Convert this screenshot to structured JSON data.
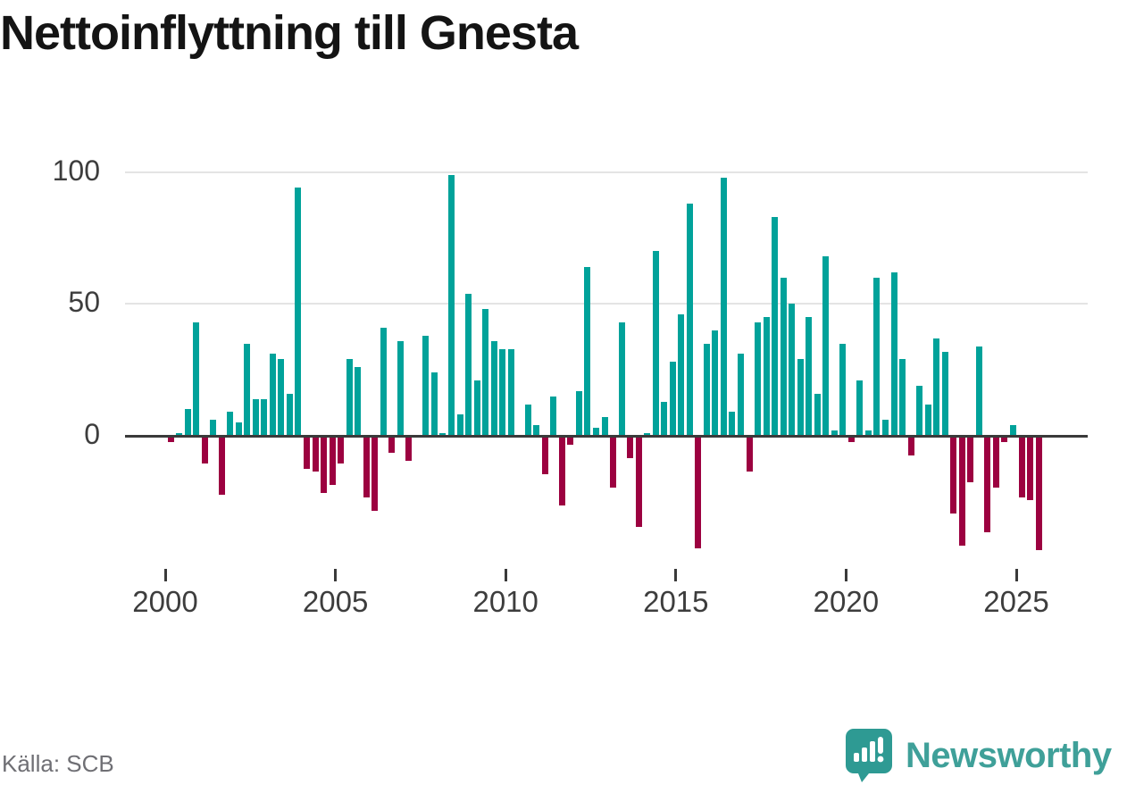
{
  "title": "Nettoinflyttning till Gnesta",
  "source_caption": "Källa: SCB",
  "logo": {
    "text": "Newsworthy",
    "icon": "newsworthy-speech-bubble-chart-icon"
  },
  "colors": {
    "positive": "#00a29a",
    "negative": "#9c0140",
    "zero_axis": "#3a3a3a",
    "gridline": "#e4e4e4",
    "axis_label": "#3d3d3d",
    "title_text": "#141414",
    "source_text": "#6f6f74",
    "logo_icon_teal": "#2e9a93",
    "logo_text_teal": "#3fa099"
  },
  "chart_data": {
    "type": "bar",
    "title": "Nettoinflyttning till Gnesta",
    "xlabel": "",
    "ylabel": "",
    "x_unit": "quarter",
    "periods_per_year": 4,
    "start_year": 2000,
    "start_period": 1,
    "end_year": 2025,
    "end_period": 3,
    "x_tick_labels": [
      "2000",
      "2005",
      "2010",
      "2015",
      "2020",
      "2025"
    ],
    "y_tick_labels": [
      "100",
      "50",
      "0"
    ],
    "y_gridlines": [
      100,
      50,
      0
    ],
    "ylim": [
      -50,
      105
    ],
    "grid": "horizontal-only",
    "legend": "none",
    "positive_color": "#00a29a",
    "negative_color": "#9c0140",
    "series": [
      {
        "name": "Nettoinflyttning till Gnesta (kvartal)",
        "values": [
          -2,
          1,
          10,
          43,
          -10,
          6,
          -22,
          9,
          5,
          35,
          14,
          14,
          31,
          29,
          16,
          94,
          -12,
          -13,
          -21,
          -18,
          -10,
          29,
          26,
          -23,
          -28,
          41,
          -6,
          36,
          -9,
          0,
          38,
          24,
          1,
          99,
          8,
          54,
          21,
          48,
          36,
          33,
          33,
          0,
          12,
          4,
          -14,
          15,
          -26,
          -3,
          17,
          64,
          3,
          7,
          -19,
          43,
          -8,
          -34,
          1,
          70,
          13,
          28,
          46,
          88,
          -42,
          35,
          40,
          98,
          9,
          31,
          -13,
          43,
          45,
          83,
          60,
          50,
          29,
          45,
          16,
          68,
          2,
          35,
          -2,
          21,
          2,
          60,
          6,
          62,
          29,
          -7,
          19,
          12,
          37,
          32,
          -29,
          -41,
          -17,
          34,
          -36,
          -19,
          -2,
          4,
          -23,
          -24,
          -43
        ]
      }
    ]
  }
}
